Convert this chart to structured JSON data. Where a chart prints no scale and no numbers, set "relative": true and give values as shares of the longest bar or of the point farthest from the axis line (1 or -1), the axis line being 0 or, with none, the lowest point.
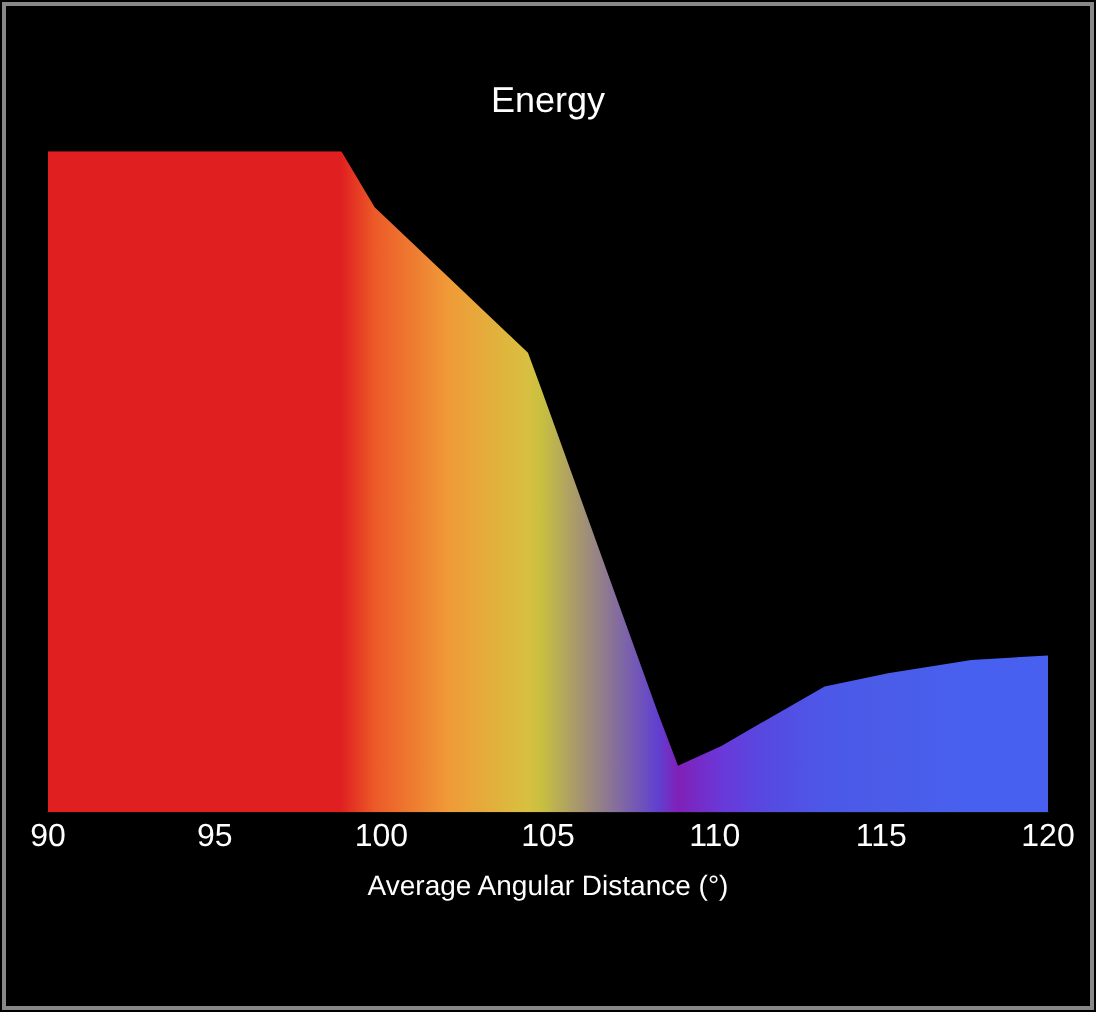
{
  "chart_data": {
    "type": "area",
    "title": "Energy",
    "xlabel": "Average Angular Distance (°)",
    "relative": true,
    "xlim": [
      90,
      120
    ],
    "xticks": [
      90,
      95,
      100,
      105,
      110,
      115,
      120
    ],
    "grid": false,
    "legend": false,
    "series": [
      {
        "x": [
          90,
          98.8,
          99.8,
          102,
          104.4,
          104.8,
          108.3,
          108.9,
          110.2,
          111.4,
          113.3,
          115.2,
          117.7,
          120
        ],
        "values": [
          1,
          1,
          0.915,
          0.81,
          0.695,
          0.64,
          0.15,
          0.07,
          0.1,
          0.135,
          0.19,
          0.21,
          0.23,
          0.237
        ],
        "colors": [
          "#e02020",
          "#e02020",
          "#ec5a28",
          "#f09a38",
          "#d8c040",
          "#c8c040",
          "#6040d0",
          "#8020b8",
          "#6a38d8",
          "#5848e0",
          "#4c58e8",
          "#4a5ce8",
          "#4860f0",
          "#4860f0"
        ]
      }
    ]
  }
}
